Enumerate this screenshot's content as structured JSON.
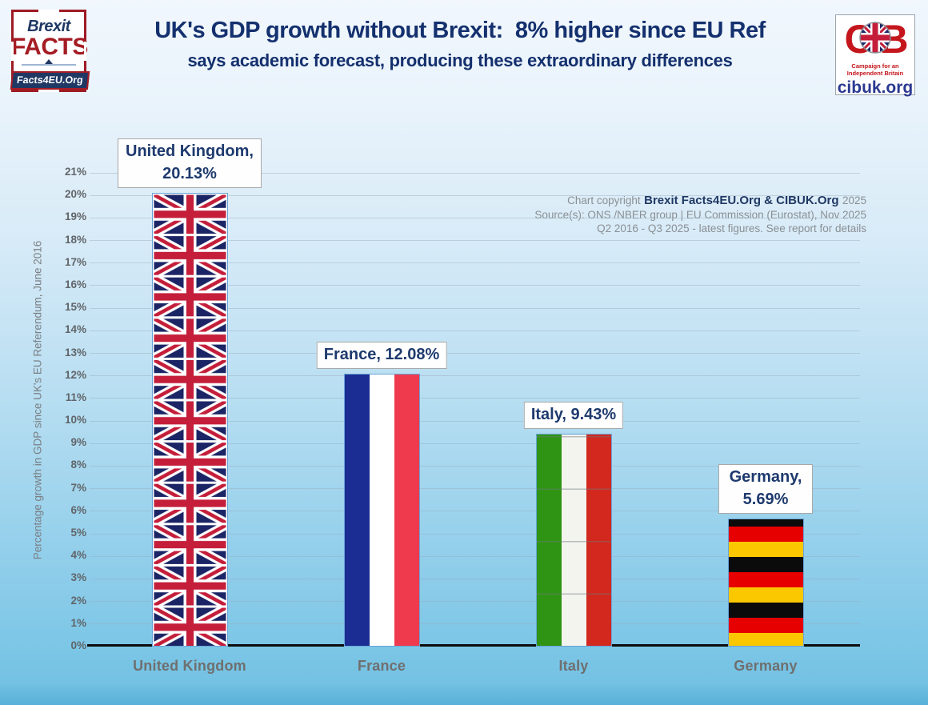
{
  "header": {
    "title": "UK's GDP growth without Brexit:  8% higher since EU Ref",
    "subtitle": "says academic forecast, producing these extraordinary differences",
    "brexit_facts_logo": {
      "line1": "Brexit",
      "line2": "FACTS",
      "line3": "Facts4EU.Org"
    },
    "cib_logo": {
      "letters": [
        "C",
        "I",
        "B"
      ],
      "tagline": "Campaign for an Independent Britain",
      "site": "cibuk.org"
    }
  },
  "chart_data": {
    "type": "bar",
    "title": "UK's GDP growth without Brexit:  8% higher since EU Ref",
    "subtitle": "says academic forecast, producing these extraordinary differences",
    "categories": [
      "United Kingdom",
      "France",
      "Italy",
      "Germany"
    ],
    "values": [
      20.13,
      12.08,
      9.43,
      5.69
    ],
    "bar_labels": [
      "United Kingdom, 20.13%",
      "France, 12.08%",
      "Italy, 9.43%",
      "Germany, 5.69%"
    ],
    "ylabel": "Percentage growth in GDP since UK's EU Referendum, June 2016",
    "xlabel": "",
    "ylim": [
      0,
      21
    ],
    "ytick_step": 1,
    "ytick_suffix": "%",
    "grid": true,
    "legend": "none",
    "bar_style": "national-flags",
    "flag_colors": {
      "united_kingdom": {
        "blue": "#1b2566",
        "red": "#c41e3a",
        "white": "#ffffff"
      },
      "france": {
        "blue": "#1b2d92",
        "white": "#ffffff",
        "red": "#ee3a4c"
      },
      "italy": {
        "green": "#2f9414",
        "white": "#f3f4ee",
        "red": "#d2281e"
      },
      "germany": {
        "black": "#0b0b0b",
        "red": "#e60000",
        "gold": "#fbc800"
      }
    }
  },
  "annotations": {
    "copyright_prefix": "Chart copyright",
    "copyright_bold": "Brexit Facts4EU.Org & CIBUK.Org",
    "copyright_year": "2025",
    "source_line": "Source(s): ONS /NBER group  | EU Commission (Eurostat), Nov 2025",
    "period_line": "Q2 2016 - Q3 2025 - latest figures. See report for details"
  },
  "colors": {
    "title_navy": "#14306e",
    "label_navy": "#1e3a6e",
    "axis_gray": "#616569",
    "brand_red": "#a51c24",
    "cib_red": "#c4161c",
    "cib_blue": "#2b3990",
    "background_top": "#f1f7fd",
    "background_bottom": "#57b0d8",
    "bar_border": "#69a3d8"
  }
}
